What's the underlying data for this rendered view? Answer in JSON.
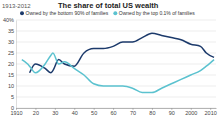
{
  "chart_data": {
    "type": "line",
    "title": "The share of total US wealth",
    "subtitle": "1913-2012",
    "x": [
      1913,
      1916,
      1917,
      1920,
      1925,
      1928,
      1929,
      1932,
      1935,
      1940,
      1945,
      1950,
      1955,
      1960,
      1965,
      1970,
      1975,
      1980,
      1985,
      1990,
      1995,
      2000,
      2005,
      2008,
      2012
    ],
    "series": [
      {
        "name": "Owned by the bottom 90% of families",
        "color": "#1c3a6b",
        "values": [
          null,
          null,
          16,
          20,
          18,
          16,
          17,
          22,
          20,
          19,
          25,
          27,
          27,
          28,
          30,
          30,
          32,
          34,
          33,
          32,
          31,
          29,
          28,
          25,
          23
        ]
      },
      {
        "name": "Owned by the top 0.1% of families",
        "color": "#5bc2cf",
        "values": [
          22,
          20,
          19,
          16,
          20,
          24,
          25,
          20,
          21,
          18,
          15,
          11,
          10,
          10,
          10,
          9,
          7,
          7,
          9,
          11,
          13,
          15,
          17,
          19,
          22
        ]
      }
    ],
    "xlim": [
      1910,
      2013
    ],
    "xticks": [
      1910,
      {
        "value": 1920,
        "label": "20"
      },
      {
        "value": 1930,
        "label": "30"
      },
      {
        "value": 1940,
        "label": "40"
      },
      {
        "value": 1950,
        "label": "50"
      },
      {
        "value": 1960,
        "label": "60"
      },
      {
        "value": 1970,
        "label": "70"
      },
      {
        "value": 1980,
        "label": "80"
      },
      {
        "value": 1990,
        "label": "90"
      },
      2000,
      2010
    ],
    "ylim": [
      0,
      40
    ],
    "yticks": [
      0,
      5,
      10,
      15,
      20,
      25,
      30,
      35,
      {
        "value": 40,
        "label": "40%"
      }
    ],
    "grid": true,
    "legend": "top"
  }
}
